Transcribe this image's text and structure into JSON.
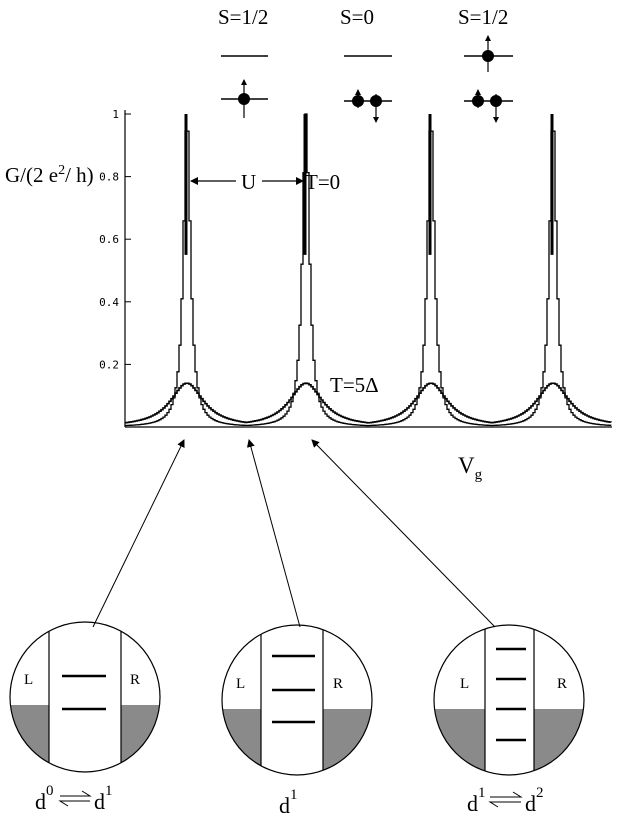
{
  "chart_data": {
    "type": "line",
    "ylabel": "G/(2 e2/ h)",
    "ylabel_parts": {
      "prefix": "G/(2 e",
      "sup": "2",
      "suffix": "/ h)"
    },
    "xlabel_parts": {
      "main": "V",
      "sub": "g"
    },
    "ylim": [
      0,
      1
    ],
    "yticks": [
      "0.2",
      "0.4",
      "0.6",
      "0.8",
      "1"
    ],
    "grid": false,
    "peak_positions": [
      1,
      2,
      3,
      4
    ],
    "series": [
      {
        "name": "T=0",
        "peak_height": 1.0,
        "half_width": 0.035
      },
      {
        "name": "T=5Δ",
        "peak_height": 0.14,
        "half_width": 0.17
      }
    ]
  },
  "annotations": {
    "spacing_label": "U",
    "t0_label": "T=0",
    "t5_label": "T=5Δ"
  },
  "spin_states": [
    {
      "label": "S=1/2"
    },
    {
      "label": "S=0"
    },
    {
      "label": "S=1/2"
    }
  ],
  "dot_panels": [
    {
      "left": "L",
      "right": "R",
      "caption": {
        "a": "d",
        "a_sup": "0",
        "b": "d",
        "b_sup": "1"
      }
    },
    {
      "left": "L",
      "right": "R",
      "caption": {
        "a": "d",
        "a_sup": "1"
      }
    },
    {
      "left": "L",
      "right": "R",
      "caption": {
        "a": "d",
        "a_sup": "1",
        "b": "d",
        "b_sup": "2"
      }
    }
  ]
}
